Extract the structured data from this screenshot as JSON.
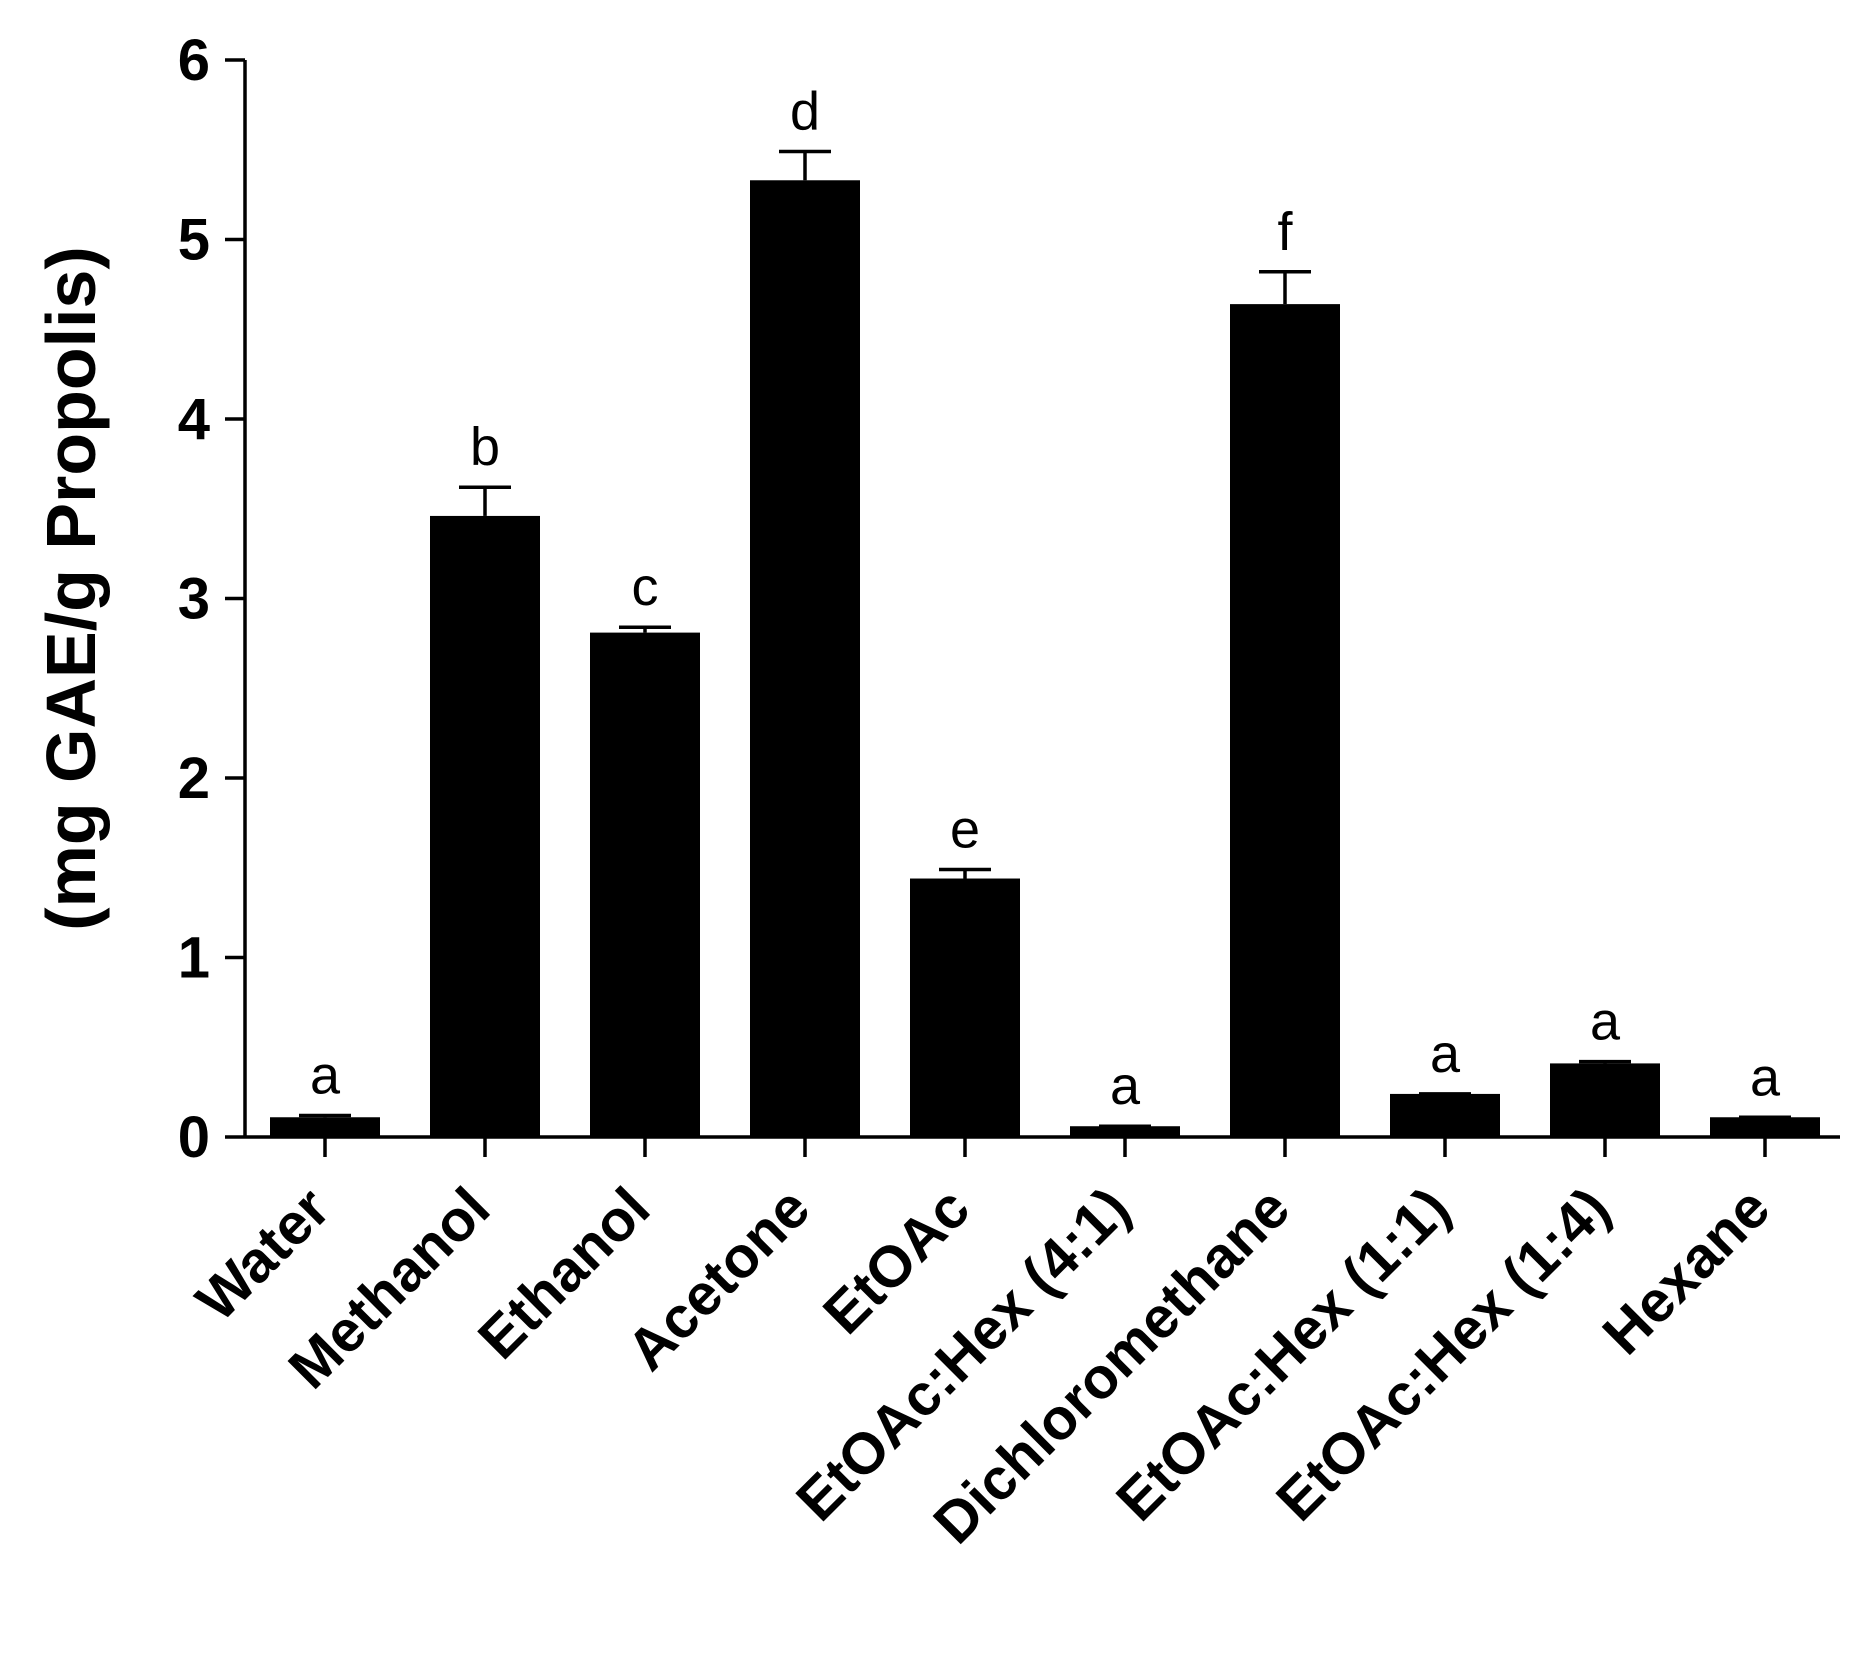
{
  "chart_data": {
    "type": "bar",
    "title": "",
    "xlabel": "",
    "ylabel": "(mg GAE/g Propolis)",
    "ylim": [
      0,
      6
    ],
    "yticks": [
      0,
      1,
      2,
      3,
      4,
      5,
      6
    ],
    "grid": false,
    "categories": [
      "Water",
      "Methanol",
      "Ethanol",
      "Acetone",
      "EtOAc",
      "EtOAc:Hex (4:1)",
      "Dichloromethane",
      "EtOAc:Hex (1:1)",
      "EtOAc:Hex (1:4)",
      "Hexane"
    ],
    "values": [
      0.11,
      3.46,
      2.81,
      5.33,
      1.44,
      0.06,
      4.64,
      0.24,
      0.41,
      0.11
    ],
    "errors": [
      0.01,
      0.16,
      0.03,
      0.16,
      0.05,
      0.0,
      0.18,
      0.0,
      0.01,
      0.0
    ],
    "significance_letters": [
      "a",
      "b",
      "c",
      "d",
      "e",
      "a",
      "f",
      "a",
      "a",
      "a"
    ],
    "bar_color": "#000000"
  }
}
